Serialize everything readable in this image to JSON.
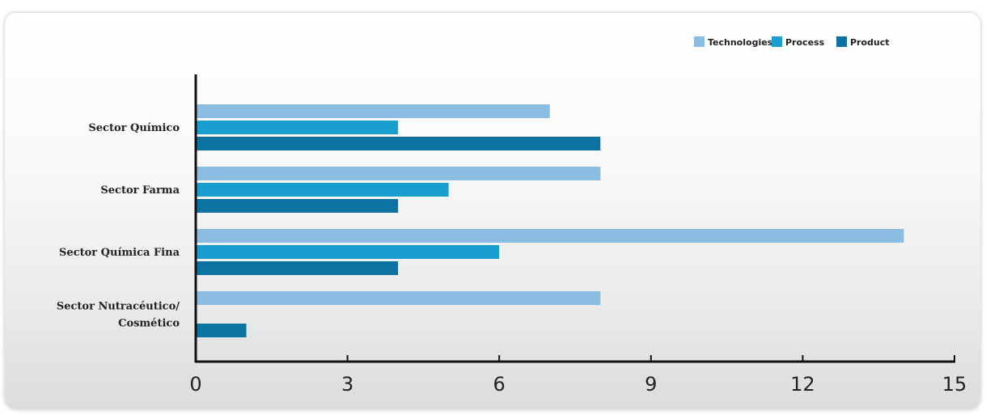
{
  "chart_data": {
    "type": "bar",
    "orientation": "horizontal",
    "categories": [
      "Sector Químico",
      "Sector Farma",
      "Sector Química Fina",
      "Sector Nutracéutico/ Cosmético"
    ],
    "category_lines": [
      [
        "Sector Químico"
      ],
      [
        "Sector Farma"
      ],
      [
        "Sector Química Fina"
      ],
      [
        "Sector Nutracéutico/",
        "Cosmético"
      ]
    ],
    "series": [
      {
        "name": "Technologies",
        "values": [
          7,
          8,
          14,
          8
        ],
        "color": "#8bbde3"
      },
      {
        "name": "Process",
        "values": [
          4,
          5,
          6,
          null
        ],
        "color": "#199fcf"
      },
      {
        "name": "Product",
        "values": [
          8,
          4,
          4,
          1
        ],
        "color": "#0b72a2"
      }
    ],
    "xlim": [
      0,
      15
    ],
    "xticks": [
      0,
      3,
      6,
      9,
      12,
      15
    ],
    "title": "",
    "xlabel": "",
    "ylabel": "",
    "legend_position": "top-right",
    "grid": false
  }
}
